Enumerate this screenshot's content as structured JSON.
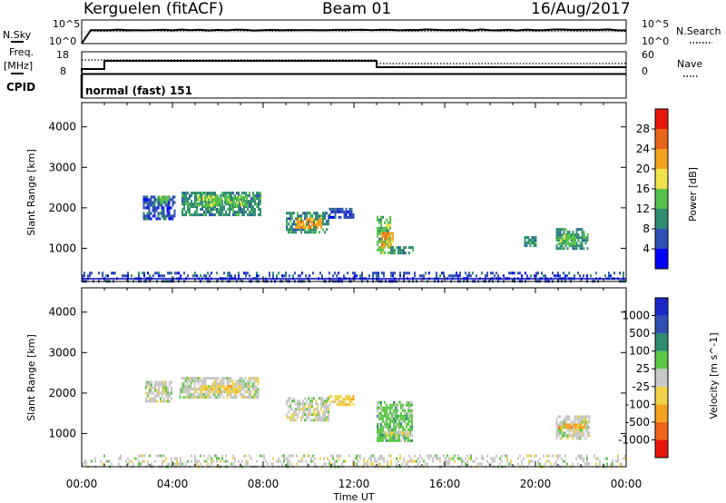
{
  "header": {
    "title": "Kerguelen (fitACF)",
    "beam": "Beam 01",
    "date": "16/Aug/2017"
  },
  "strip_noise": {
    "left_label": "N.Sky",
    "right_label": "N.Search",
    "left_ticks": [
      "10^5",
      "10^0"
    ],
    "right_ticks": [
      "10^5",
      "10^0"
    ]
  },
  "strip_freq": {
    "left_label_1": "Freq.",
    "left_label_2": "[MHz]",
    "right_label": "Nave",
    "left_ticks": [
      "18",
      "8"
    ],
    "right_ticks": [
      "60",
      "0"
    ],
    "cpid_label": "CPID",
    "mode_text": "normal (fast) 151"
  },
  "colors": {
    "power": [
      "#0000ff",
      "#2f4fb4",
      "#2e8c70",
      "#56c24a",
      "#f0e24a",
      "#f5a31e",
      "#e8641c",
      "#e8180e"
    ],
    "velocity": [
      "#e81810",
      "#f0641e",
      "#f5a21e",
      "#f1d24a",
      "#c8c8c8",
      "#5cc846",
      "#2e8c70",
      "#2f4fb4",
      "#1a28c8"
    ]
  },
  "chart_data": [
    {
      "type": "heatmap",
      "panel": "power",
      "ylabel": "Slant Range [km]",
      "ylim": [
        180,
        4600
      ],
      "yticks": [
        1000,
        2000,
        3000,
        4000
      ],
      "xlim": [
        0,
        24
      ],
      "colorbar": {
        "label": "Power [dB]",
        "ticks": [
          "4",
          "8",
          "12",
          "16",
          "20",
          "24",
          "28"
        ],
        "range": [
          0,
          32
        ]
      },
      "patches": [
        {
          "t0": 2.7,
          "t1": 4.1,
          "r0": 1700,
          "r1": 2300,
          "level": 1
        },
        {
          "t0": 3.3,
          "t1": 3.8,
          "r0": 2100,
          "r1": 2300,
          "level": 3
        },
        {
          "t0": 4.4,
          "t1": 7.9,
          "r0": 1800,
          "r1": 2400,
          "level": 2
        },
        {
          "t0": 5.0,
          "t1": 7.3,
          "r0": 2050,
          "r1": 2300,
          "level": 3
        },
        {
          "t0": 9.0,
          "t1": 10.9,
          "r0": 1400,
          "r1": 1900,
          "level": 2
        },
        {
          "t0": 9.4,
          "t1": 10.6,
          "r0": 1500,
          "r1": 1750,
          "level": 5
        },
        {
          "t0": 10.9,
          "t1": 12.0,
          "r0": 1750,
          "r1": 2000,
          "level": 1
        },
        {
          "t0": 13.0,
          "t1": 13.6,
          "r0": 900,
          "r1": 1800,
          "level": 3
        },
        {
          "t0": 13.2,
          "t1": 13.7,
          "r0": 1000,
          "r1": 1400,
          "level": 5
        },
        {
          "t0": 13.6,
          "t1": 14.6,
          "r0": 850,
          "r1": 1050,
          "level": 2
        },
        {
          "t0": 20.9,
          "t1": 22.3,
          "r0": 1000,
          "r1": 1500,
          "level": 2
        },
        {
          "t0": 21.0,
          "t1": 21.8,
          "r0": 1100,
          "r1": 1350,
          "level": 3
        },
        {
          "t0": 19.5,
          "t1": 20.0,
          "r0": 1050,
          "r1": 1300,
          "level": 2
        },
        {
          "t0": 0.0,
          "t1": 24.0,
          "r0": 200,
          "r1": 420,
          "level": 1
        }
      ]
    },
    {
      "type": "heatmap",
      "panel": "velocity",
      "ylabel": "Slant Range [km]",
      "xlabel": "Time UT",
      "ylim": [
        180,
        4600
      ],
      "yticks": [
        1000,
        2000,
        3000,
        4000
      ],
      "xlim": [
        0,
        24
      ],
      "xticks": [
        "00:00",
        "04:00",
        "08:00",
        "12:00",
        "16:00",
        "20:00",
        "00:00"
      ],
      "colorbar": {
        "label": "Velocity [m s^-1]",
        "ticks": [
          "1000",
          "500",
          "100",
          "25",
          "-25",
          "-100",
          "-500",
          "-1000"
        ]
      },
      "patches": [
        {
          "t0": 2.8,
          "t1": 4.0,
          "r0": 1800,
          "r1": 2300,
          "level": 4
        },
        {
          "t0": 4.3,
          "t1": 7.8,
          "r0": 1900,
          "r1": 2400,
          "level": 4
        },
        {
          "t0": 5.2,
          "t1": 7.0,
          "r0": 2050,
          "r1": 2200,
          "level": 3
        },
        {
          "t0": 9.0,
          "t1": 10.9,
          "r0": 1350,
          "r1": 1900,
          "level": 4
        },
        {
          "t0": 10.9,
          "t1": 12.0,
          "r0": 1700,
          "r1": 1950,
          "level": 3
        },
        {
          "t0": 13.0,
          "t1": 14.6,
          "r0": 850,
          "r1": 1800,
          "level": 5
        },
        {
          "t0": 13.2,
          "t1": 14.5,
          "r0": 950,
          "r1": 1050,
          "level": 4
        },
        {
          "t0": 20.9,
          "t1": 22.4,
          "r0": 900,
          "r1": 1450,
          "level": 4
        },
        {
          "t0": 21.0,
          "t1": 22.2,
          "r0": 1150,
          "r1": 1250,
          "level": 2
        },
        {
          "t0": 0.0,
          "t1": 24.0,
          "r0": 200,
          "r1": 480,
          "level": 4
        }
      ]
    }
  ]
}
